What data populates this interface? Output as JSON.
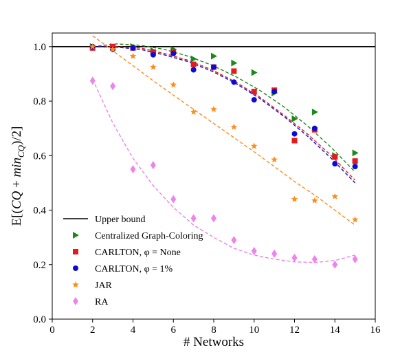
{
  "chart_data": {
    "type": "scatter",
    "xlabel": "# Networks",
    "ylabel": "E[(CQ + min_CQ)/2]",
    "xlim": [
      0,
      16
    ],
    "ylim": [
      0.0,
      1.05
    ],
    "xticks": [
      0,
      2,
      4,
      6,
      8,
      10,
      12,
      14,
      16
    ],
    "xtick_labels": [
      "0",
      "2",
      "4",
      "6",
      "8",
      "10",
      "12",
      "14",
      "16"
    ],
    "yticks": [
      0.0,
      0.2,
      0.4,
      0.6,
      0.8,
      1.0
    ],
    "ytick_labels": [
      "0.0",
      "0.2",
      "0.4",
      "0.6",
      "0.8",
      "1.0"
    ],
    "grid": false,
    "legend_position": "lower-left",
    "reference_line": {
      "name": "Upper bound",
      "y": 1.0,
      "color": "#000000"
    },
    "series": [
      {
        "name": "Centralized Graph-Coloring",
        "marker": "triangle-right",
        "color": "#1a8a1a",
        "x": [
          2,
          3,
          4,
          5,
          6,
          7,
          8,
          9,
          10,
          11,
          12,
          13,
          14,
          15
        ],
        "y": [
          1.0,
          1.0,
          1.0,
          0.985,
          0.99,
          0.955,
          0.965,
          0.94,
          0.905,
          0.83,
          0.735,
          0.76,
          0.6,
          0.61
        ],
        "fit": [
          1.0,
          1.01,
          1.005,
          0.99,
          0.965,
          0.932,
          0.89,
          0.84,
          0.78,
          0.71,
          0.63,
          0.54
        ]
      },
      {
        "name": "CARLTON, φ = None",
        "marker": "square",
        "color": "#e41a1c",
        "x": [
          2,
          3,
          4,
          5,
          6,
          7,
          8,
          9,
          10,
          11,
          12,
          13,
          14,
          15
        ],
        "y": [
          0.995,
          1.0,
          0.995,
          0.98,
          0.98,
          0.935,
          0.925,
          0.91,
          0.835,
          0.84,
          0.655,
          0.695,
          0.595,
          0.58
        ],
        "fit": [
          1.0,
          1.0,
          0.995,
          0.975,
          0.95,
          0.915,
          0.87,
          0.815,
          0.75,
          0.68,
          0.6,
          0.51
        ]
      },
      {
        "name": "CARLTON, φ = 1%",
        "marker": "circle",
        "color": "#0b0bd6",
        "x": [
          2,
          3,
          4,
          5,
          6,
          7,
          8,
          9,
          10,
          11,
          12,
          13,
          14,
          15
        ],
        "y": [
          1.0,
          0.99,
          0.995,
          0.97,
          0.975,
          0.915,
          0.925,
          0.87,
          0.805,
          0.835,
          0.68,
          0.7,
          0.57,
          0.56
        ],
        "fit": [
          1.0,
          0.998,
          0.99,
          0.97,
          0.945,
          0.91,
          0.865,
          0.81,
          0.745,
          0.672,
          0.59,
          0.5
        ]
      },
      {
        "name": "JAR",
        "marker": "star",
        "color": "#ff8c1a",
        "x": [
          2,
          3,
          4,
          5,
          6,
          7,
          8,
          9,
          10,
          11,
          12,
          13,
          14,
          15
        ],
        "y": [
          1.0,
          0.99,
          0.965,
          0.925,
          0.86,
          0.76,
          0.77,
          0.705,
          0.635,
          0.585,
          0.44,
          0.435,
          0.45,
          0.365
        ],
        "fit": [
          1.04,
          0.985,
          0.93,
          0.875,
          0.822,
          0.77,
          0.718,
          0.666,
          0.614,
          0.56,
          0.505,
          0.455,
          0.4,
          0.345
        ]
      },
      {
        "name": "RA",
        "marker": "diamond",
        "color": "#ee82ee",
        "x": [
          2,
          3,
          4,
          5,
          6,
          7,
          8,
          9,
          10,
          11,
          12,
          13,
          14,
          15
        ],
        "y": [
          0.875,
          0.855,
          0.55,
          0.565,
          0.44,
          0.37,
          0.37,
          0.29,
          0.25,
          0.24,
          0.225,
          0.22,
          0.2,
          0.22
        ],
        "fit": [
          0.88,
          0.72,
          0.59,
          0.49,
          0.41,
          0.345,
          0.3,
          0.26,
          0.235,
          0.22,
          0.21,
          0.208,
          0.215,
          0.235
        ]
      }
    ]
  }
}
